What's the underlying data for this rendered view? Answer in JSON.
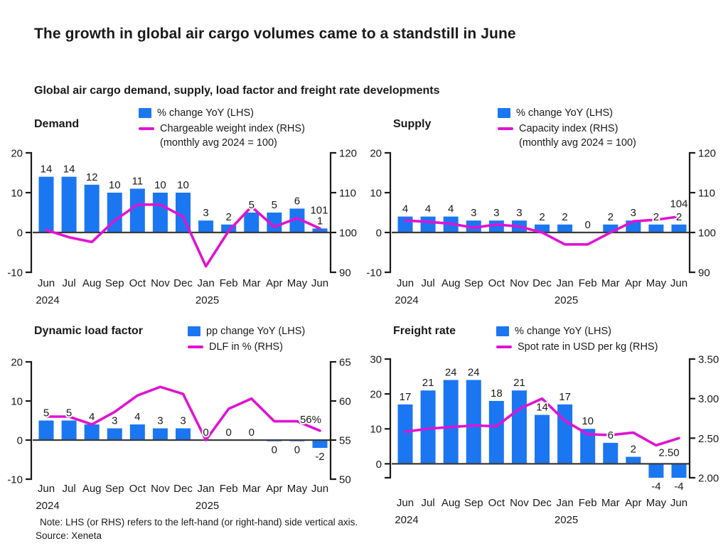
{
  "page": {
    "title": "The growth in global air cargo volumes came to a standstill in June",
    "subtitle": "Global air cargo demand, supply, load factor and freight rate developments",
    "note": "Note: LHS (or RHS) refers to the left-hand (or right-hand) side vertical axis.",
    "source": "Source: Xeneta"
  },
  "colors": {
    "bar": "#1B76F2",
    "line": "#E013D3",
    "zero_line": "#3C3C3C",
    "axis": "#1A1A1A",
    "text": "#1A1A1A"
  },
  "chart_data": [
    {
      "id": "demand",
      "type": "bar+line",
      "title": "Demand",
      "legend_bar_label": "% change YoY (LHS)",
      "legend_line_label": "Chargeable weight index (RHS)",
      "legend_line_label2": "(monthly avg 2024 = 100)",
      "categories": [
        "Jun",
        "Jul",
        "Aug",
        "Sep",
        "Oct",
        "Nov",
        "Dec",
        "Jan",
        "Feb",
        "Mar",
        "Apr",
        "May",
        "Jun"
      ],
      "year_labels": [
        {
          "month_index": 0,
          "label": "2024"
        },
        {
          "month_index": 7,
          "label": "2025"
        }
      ],
      "bars": {
        "name": "% change YoY (LHS)",
        "values": [
          14,
          14,
          12,
          10,
          11,
          10,
          10,
          3,
          2,
          5,
          5,
          6,
          1
        ],
        "labels": [
          "14",
          "14",
          "12",
          "10",
          "11",
          "10",
          "10",
          "3",
          "2",
          "5",
          "5",
          "6",
          "1"
        ]
      },
      "line": {
        "name": "Chargeable weight index (RHS)",
        "values": [
          100.6,
          98.8,
          97.6,
          103,
          107,
          107,
          104,
          91.5,
          100.4,
          106.5,
          101.4,
          103.6,
          101
        ],
        "end_label": "101"
      },
      "lhs_axis": {
        "min": -10,
        "max": 20,
        "tick_values": [
          20,
          10,
          0,
          -10
        ],
        "ticks": [
          "20",
          "10",
          "0",
          "-10"
        ]
      },
      "rhs_axis": {
        "min": 90,
        "max": 120,
        "tick_values": [
          120,
          110,
          100,
          90
        ],
        "ticks": [
          "120",
          "110",
          "100",
          "90"
        ]
      }
    },
    {
      "id": "supply",
      "type": "bar+line",
      "title": "Supply",
      "legend_bar_label": "% change YoY (LHS)",
      "legend_line_label": "Capacity index (RHS)",
      "legend_line_label2": "(monthly avg 2024 = 100)",
      "categories": [
        "Jun",
        "Jul",
        "Aug",
        "Sep",
        "Oct",
        "Nov",
        "Dec",
        "Jan",
        "Feb",
        "Mar",
        "Apr",
        "May",
        "Jun"
      ],
      "year_labels": [
        {
          "month_index": 0,
          "label": "2024"
        },
        {
          "month_index": 7,
          "label": "2025"
        }
      ],
      "bars": {
        "name": "% change YoY (LHS)",
        "values": [
          4,
          4,
          4,
          3,
          3,
          3,
          2,
          2,
          0,
          2,
          3,
          2,
          2
        ],
        "labels": [
          "4",
          "4",
          "4",
          "3",
          "3",
          "3",
          "2",
          "2",
          "0",
          "2",
          "3",
          "2",
          "2"
        ]
      },
      "line": {
        "name": "Capacity index (RHS)",
        "values": [
          103,
          102.7,
          102.2,
          101.2,
          102,
          101.5,
          100,
          97,
          97,
          100,
          102.8,
          103.2,
          104
        ],
        "end_label": "104"
      },
      "lhs_axis": {
        "min": -10,
        "max": 20,
        "tick_values": [
          20,
          10,
          0,
          -10
        ],
        "ticks": [
          "20",
          "10",
          "0",
          "-10"
        ]
      },
      "rhs_axis": {
        "min": 90,
        "max": 120,
        "tick_values": [
          120,
          110,
          100,
          90
        ],
        "ticks": [
          "120",
          "110",
          "100",
          "90"
        ]
      }
    },
    {
      "id": "dlf",
      "type": "bar+line",
      "title": "Dynamic load factor",
      "legend_bar_label": "pp change YoY (LHS)",
      "legend_line_label": "DLF in % (RHS)",
      "legend_line_label2": "",
      "categories": [
        "Jun",
        "Jul",
        "Aug",
        "Sep",
        "Oct",
        "Nov",
        "Dec",
        "Jan",
        "Feb",
        "Mar",
        "Apr",
        "May",
        "Jun"
      ],
      "year_labels": [
        {
          "month_index": 0,
          "label": "2024"
        },
        {
          "month_index": 7,
          "label": "2025"
        }
      ],
      "bars": {
        "name": "pp change YoY (LHS)",
        "values": [
          5,
          5,
          4,
          3,
          4,
          3,
          3,
          0,
          0,
          0,
          -0.3,
          -0.3,
          -2
        ],
        "labels": [
          "5",
          "5",
          "4",
          "3",
          "4",
          "3",
          "3",
          "0",
          "0",
          "0",
          "0",
          "0",
          "-2"
        ]
      },
      "line": {
        "name": "DLF in % (RHS)",
        "values": [
          58,
          58,
          57,
          58.6,
          60.7,
          61.8,
          60.9,
          55,
          59,
          60.3,
          57.4,
          57.4,
          56.2
        ],
        "end_label": "56%"
      },
      "lhs_axis": {
        "min": -10,
        "max": 20,
        "tick_values": [
          20,
          10,
          0,
          -10
        ],
        "ticks": [
          "20",
          "10",
          "0",
          "-10"
        ]
      },
      "rhs_axis": {
        "min": 50,
        "max": 65,
        "tick_values": [
          65,
          60,
          55,
          50
        ],
        "ticks": [
          "65",
          "60",
          "55",
          "50"
        ]
      }
    },
    {
      "id": "freight",
      "type": "bar+line",
      "title": "Freight rate",
      "legend_bar_label": "% change YoY (LHS)",
      "legend_line_label": "Spot rate in USD per kg (RHS)",
      "legend_line_label2": "",
      "categories": [
        "Jun",
        "Jul",
        "Aug",
        "Sep",
        "Oct",
        "Nov",
        "Dec",
        "Jan",
        "Feb",
        "Mar",
        "Apr",
        "May",
        "Jun"
      ],
      "year_labels": [
        {
          "month_index": 0,
          "label": "2024"
        },
        {
          "month_index": 7,
          "label": "2025"
        }
      ],
      "bars": {
        "name": "% change YoY (LHS)",
        "values": [
          17,
          21,
          24,
          24,
          18,
          21,
          14,
          17,
          10,
          6,
          2,
          -4,
          -4
        ],
        "labels": [
          "17",
          "21",
          "24",
          "24",
          "18",
          "21",
          "14",
          "17",
          "10",
          "6",
          "2",
          "-4",
          "-4"
        ]
      },
      "line": {
        "name": "Spot rate in USD per kg (RHS)",
        "values": [
          2.58,
          2.62,
          2.64,
          2.66,
          2.65,
          2.87,
          3.0,
          2.72,
          2.55,
          2.54,
          2.57,
          2.41,
          2.5
        ],
        "end_label": "2.50"
      },
      "lhs_axis": {
        "min": -4,
        "max": 30,
        "tick_values": [
          30,
          20,
          10,
          0
        ],
        "ticks": [
          "30",
          "20",
          "10",
          "0"
        ]
      },
      "rhs_axis": {
        "min": 2.0,
        "max": 3.5,
        "tick_values": [
          3.5,
          3.0,
          2.5,
          2.0
        ],
        "ticks": [
          "3.50",
          "3.00",
          "2.50",
          "2.00"
        ]
      }
    }
  ]
}
